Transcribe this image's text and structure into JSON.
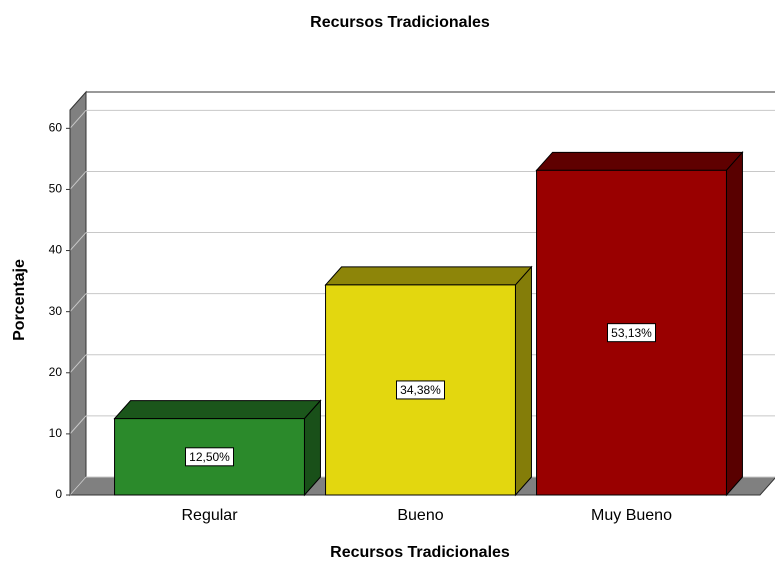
{
  "chart_data": {
    "type": "bar3d",
    "title": "Recursos Tradicionales",
    "x_label": "Recursos Tradicionales",
    "y_label": "Porcentaje",
    "categories": [
      "Regular",
      "Bueno",
      "Muy Bueno"
    ],
    "values": [
      12.5,
      34.38,
      53.13
    ],
    "value_labels": [
      "12,50%",
      "34,38%",
      "53,13%"
    ],
    "colors": [
      "#2b8a2b",
      "#e3d70f",
      "#990000"
    ],
    "ylim": [
      0,
      63
    ],
    "yticks": [
      0,
      10,
      20,
      30,
      40,
      50,
      60
    ],
    "grid": true
  }
}
